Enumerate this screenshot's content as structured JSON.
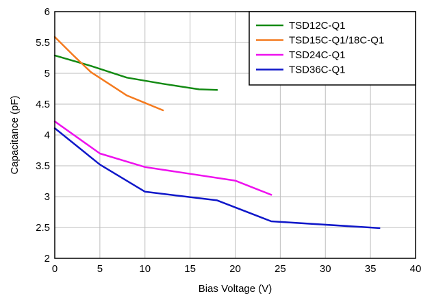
{
  "chart_data": {
    "type": "line",
    "title": "",
    "xlabel": "Bias Voltage (V)",
    "ylabel": "Capacitance (pF)",
    "xlim": [
      0,
      40
    ],
    "ylim": [
      2,
      6
    ],
    "xticks": [
      0,
      5,
      10,
      15,
      20,
      25,
      30,
      35,
      40
    ],
    "yticks": [
      2,
      2.5,
      3,
      3.5,
      4,
      4.5,
      5,
      5.5,
      6
    ],
    "xtick_labels": [
      "0",
      "5",
      "10",
      "15",
      "20",
      "25",
      "30",
      "35",
      "40"
    ],
    "ytick_labels": [
      "2",
      "2.5",
      "3",
      "3.5",
      "4",
      "4.5",
      "5",
      "5.5",
      "6"
    ],
    "grid": true,
    "legend_position": "top-right",
    "series": [
      {
        "name": "TSD12C-Q1",
        "color": "#138a13",
        "x": [
          0,
          4,
          8,
          12,
          16,
          18
        ],
        "y": [
          5.29,
          5.12,
          4.93,
          4.83,
          4.74,
          4.73
        ]
      },
      {
        "name": "TSD15C-Q1/18C-Q1",
        "color": "#f47a1e",
        "x": [
          0,
          2,
          4,
          6,
          8,
          10,
          12
        ],
        "y": [
          5.59,
          5.3,
          5.02,
          4.83,
          4.64,
          4.52,
          4.4
        ]
      },
      {
        "name": "TSD24C-Q1",
        "color": "#ee11ee",
        "x": [
          0,
          5,
          10,
          15,
          20,
          24
        ],
        "y": [
          4.22,
          3.7,
          3.48,
          3.37,
          3.26,
          3.03
        ]
      },
      {
        "name": "TSD36C-Q1",
        "color": "#0f17c9",
        "x": [
          0,
          5,
          10,
          18,
          24,
          36
        ],
        "y": [
          4.11,
          3.52,
          3.08,
          2.94,
          2.6,
          2.49
        ]
      }
    ]
  }
}
